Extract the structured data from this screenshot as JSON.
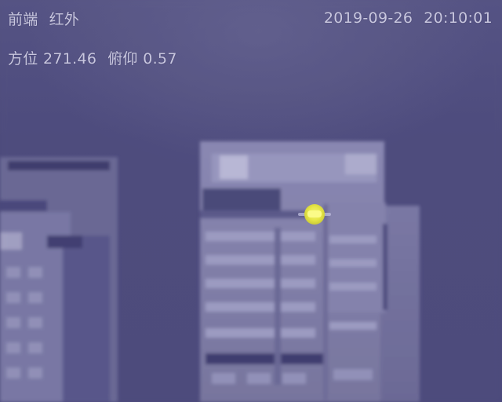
{
  "overlay": {
    "camera_label": "前端",
    "mode_label": "红外",
    "date": "2019-09-26",
    "time": "20:10:01",
    "azimuth_label": "方位",
    "azimuth_value": "271.46",
    "pitch_label": "俯仰",
    "pitch_value": "0.57"
  },
  "palette": {
    "sky": "#4e4c7d",
    "overlay_text": "#c9c7df",
    "hotspot": "#e6e646"
  }
}
